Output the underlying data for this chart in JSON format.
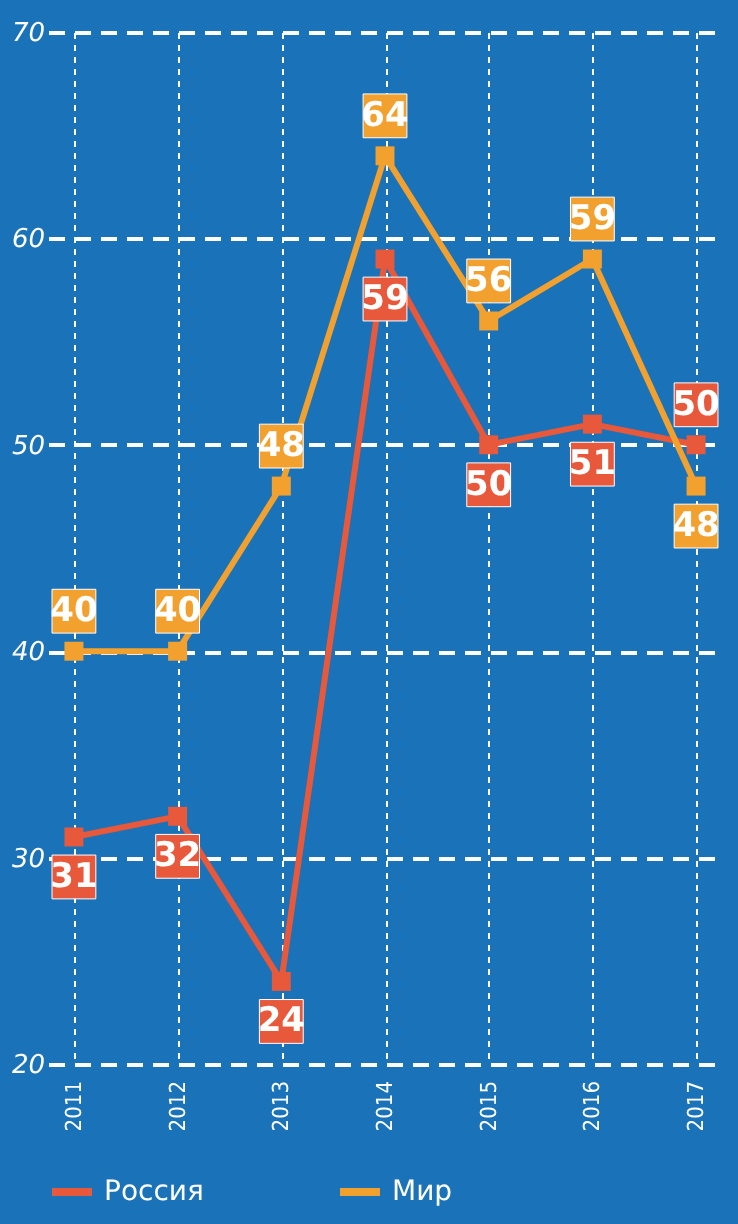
{
  "chart_data": {
    "type": "line",
    "categories": [
      "2011",
      "2012",
      "2013",
      "2014",
      "2015",
      "2016",
      "2017"
    ],
    "series": [
      {
        "name": "Россия",
        "color": "#e8583a",
        "values": [
          31,
          32,
          24,
          59,
          50,
          51,
          50
        ]
      },
      {
        "name": "Мир",
        "color": "#f2a12f",
        "values": [
          40,
          40,
          48,
          64,
          56,
          59,
          48
        ]
      }
    ],
    "ylim": [
      20,
      70
    ],
    "yticks": [
      20,
      30,
      40,
      50,
      60,
      70
    ],
    "grid": true,
    "legend": "bottom",
    "marker": "square",
    "line_style": "solid",
    "data_labels": true
  }
}
